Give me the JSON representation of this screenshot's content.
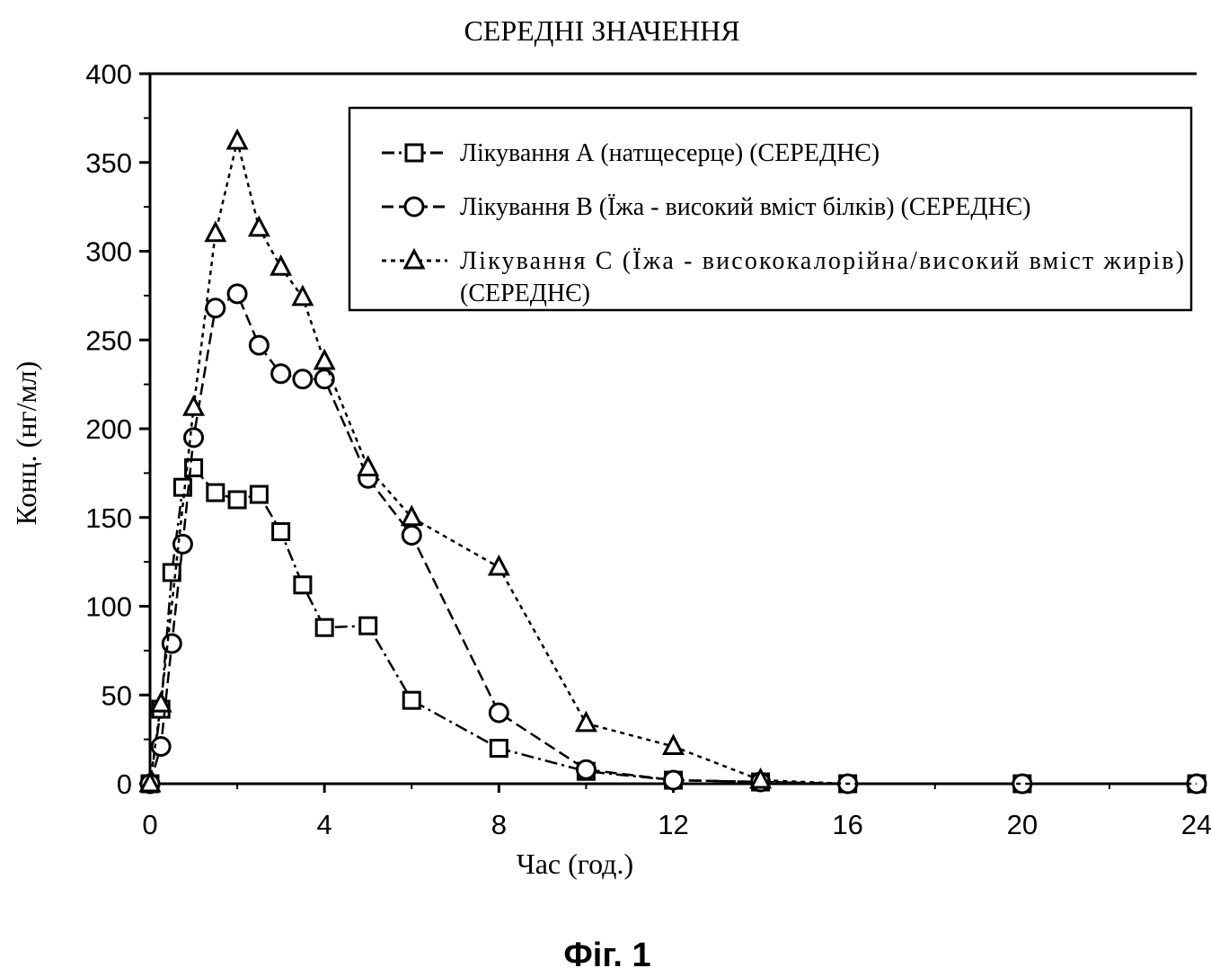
{
  "chart_data": {
    "type": "line",
    "title": "СЕРЕДНІ ЗНАЧЕННЯ",
    "xlabel": "Час (год.)",
    "ylabel": "Конц. (нг/мл)",
    "xlim": [
      0,
      24
    ],
    "ylim": [
      0,
      400
    ],
    "xticks": [
      0,
      4,
      8,
      12,
      16,
      20,
      24
    ],
    "yticks": [
      0,
      50,
      100,
      150,
      200,
      250,
      300,
      350,
      400
    ],
    "grid": false,
    "legend_position": "top-right",
    "series": [
      {
        "name": "Лікування А (натщесерце) (СЕРЕДНЄ)",
        "marker": "square",
        "dash": "dash-dot",
        "x": [
          0,
          0.25,
          0.5,
          0.75,
          1,
          1.5,
          2,
          2.5,
          3,
          3.5,
          4,
          5,
          6,
          8,
          10,
          12,
          14,
          16,
          20,
          24
        ],
        "y": [
          0,
          42,
          119,
          167,
          178,
          164,
          160,
          163,
          142,
          112,
          88,
          89,
          47,
          20,
          7,
          2,
          1,
          0,
          0,
          0
        ]
      },
      {
        "name": "Лікування В (Їжа - високий вміст білків) (СЕРЕДНЄ)",
        "marker": "circle",
        "dash": "dash",
        "x": [
          0,
          0.25,
          0.5,
          0.75,
          1,
          1.5,
          2,
          2.5,
          3,
          3.5,
          4,
          5,
          6,
          8,
          10,
          12,
          14,
          16,
          20,
          24
        ],
        "y": [
          0,
          21,
          79,
          135,
          195,
          268,
          276,
          247,
          231,
          228,
          228,
          172,
          140,
          40,
          8,
          2,
          1,
          0,
          0,
          0
        ]
      },
      {
        "name": "Лікування С (Їжа - висококалорійна/високий вміст жирів) (СЕРЕДНЄ)",
        "marker": "triangle",
        "dash": "dot",
        "x": [
          0,
          0.25,
          1,
          1.5,
          2,
          2.5,
          3,
          3.5,
          4,
          5,
          6,
          8,
          10,
          12,
          14,
          16,
          20,
          24
        ],
        "y": [
          0,
          45,
          212,
          310,
          362,
          313,
          291,
          274,
          238,
          178,
          150,
          122,
          34,
          21,
          2,
          0,
          0,
          0
        ]
      }
    ]
  },
  "figure_caption": "Фіг. 1",
  "legend": {
    "lines": [
      [
        "Лікування А (натщесерце) (СЕРЕДНЄ)"
      ],
      [
        "Лікування В (Їжа - високий вміст білків) (СЕРЕДНЄ)"
      ],
      [
        "Лікування С (Їжа - висококалорійна/високий вміст жирів)",
        "(СЕРЕДНЄ)"
      ]
    ]
  }
}
